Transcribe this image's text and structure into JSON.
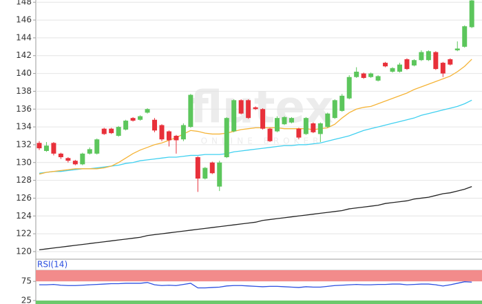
{
  "watermark": "flutex",
  "watermark_sub": "ONLINE BROKER",
  "chart_data": [
    {
      "type": "candlestick",
      "open": [
        132.2,
        131.3,
        132.2,
        131.0,
        130.5,
        130.2,
        129.8,
        131.0,
        131.0,
        133.8,
        133.8,
        133.0,
        133.7,
        135.0,
        134.8,
        135.6,
        134.8,
        134.2,
        133.5,
        133.0,
        132.6,
        134.0,
        130.6,
        128.2,
        130.0,
        127.3,
        130.6,
        133.5,
        137.0,
        137.0,
        136.2,
        136.0,
        133.8,
        133.5,
        134.3,
        134.5,
        133.8,
        133.2,
        134.4,
        133.2,
        134.0,
        135.0,
        135.8,
        137.2,
        139.6,
        140.0,
        139.6,
        139.2,
        141.2,
        140.2,
        140.2,
        141.6,
        140.9,
        141.5,
        141.5,
        142.4,
        141.2,
        141.6,
        142.6,
        143.0,
        145.2
      ],
      "high": [
        132.4,
        132.3,
        132.3,
        131.1,
        130.6,
        130.3,
        131.1,
        131.7,
        132.7,
        133.9,
        133.9,
        134.1,
        134.8,
        135.1,
        135.3,
        136.1,
        135.0,
        134.3,
        133.6,
        133.1,
        134.4,
        137.7,
        130.7,
        129.5,
        130.1,
        130.2,
        135.1,
        137.1,
        137.1,
        137.1,
        136.3,
        136.1,
        133.9,
        135.2,
        135.2,
        135.1,
        133.9,
        135.1,
        134.5,
        134.5,
        135.6,
        137.1,
        137.7,
        139.8,
        140.7,
        140.1,
        140.1,
        139.8,
        141.3,
        140.7,
        141.2,
        141.7,
        141.6,
        142.6,
        142.6,
        142.5,
        141.3,
        141.7,
        143.6,
        145.4,
        148.3
      ],
      "low": [
        131.4,
        131.2,
        130.8,
        130.4,
        130.0,
        129.7,
        129.7,
        130.9,
        130.9,
        133.1,
        133.2,
        132.9,
        133.6,
        134.6,
        134.7,
        135.5,
        133.4,
        132.4,
        131.8,
        131.0,
        132.4,
        133.9,
        126.7,
        128.1,
        128.7,
        126.8,
        130.5,
        133.4,
        135.4,
        134.9,
        135.9,
        133.7,
        132.3,
        133.4,
        134.2,
        134.4,
        132.6,
        133.1,
        133.3,
        132.3,
        133.9,
        134.9,
        135.7,
        137.1,
        139.5,
        139.4,
        139.5,
        139.1,
        140.7,
        140.1,
        140.1,
        140.4,
        140.8,
        141.4,
        141.4,
        140.4,
        139.6,
        140.9,
        142.5,
        142.9,
        145.1
      ],
      "close": [
        131.6,
        131.9,
        131.0,
        130.6,
        130.2,
        129.8,
        131.0,
        131.5,
        132.6,
        133.2,
        133.3,
        134.0,
        134.7,
        134.7,
        135.2,
        136.0,
        133.6,
        132.6,
        132.5,
        132.5,
        134.2,
        137.6,
        128.2,
        129.4,
        128.8,
        130.0,
        135.0,
        137.0,
        135.5,
        135.0,
        136.0,
        133.8,
        132.4,
        135.0,
        135.1,
        135.0,
        132.8,
        135.0,
        133.4,
        134.4,
        135.5,
        137.0,
        137.5,
        139.6,
        140.2,
        139.5,
        140.0,
        139.7,
        140.8,
        140.6,
        141.0,
        140.5,
        141.5,
        142.4,
        142.5,
        140.5,
        140.0,
        141.0,
        142.8,
        145.3,
        148.2
      ],
      "up_color": "#5cc65c",
      "down_color": "#e8303a",
      "series": [
        {
          "color": "#222222",
          "values": [
            120.2,
            120.3,
            120.4,
            120.5,
            120.6,
            120.7,
            120.8,
            120.9,
            121.0,
            121.1,
            121.2,
            121.3,
            121.4,
            121.5,
            121.6,
            121.8,
            121.9,
            122.0,
            122.1,
            122.2,
            122.3,
            122.4,
            122.5,
            122.6,
            122.7,
            122.8,
            122.9,
            123.0,
            123.1,
            123.2,
            123.3,
            123.5,
            123.6,
            123.7,
            123.8,
            123.9,
            124.0,
            124.1,
            124.2,
            124.3,
            124.4,
            124.5,
            124.6,
            124.8,
            124.9,
            125.0,
            125.1,
            125.2,
            125.4,
            125.5,
            125.6,
            125.7,
            125.9,
            126.0,
            126.1,
            126.3,
            126.5,
            126.6,
            126.8,
            127.0,
            127.3
          ]
        },
        {
          "color": "#3fd0f0",
          "values": [
            128.8,
            128.9,
            129.0,
            129.0,
            129.1,
            129.2,
            129.3,
            129.3,
            129.4,
            129.5,
            129.6,
            129.7,
            129.9,
            130.0,
            130.2,
            130.3,
            130.4,
            130.5,
            130.6,
            130.6,
            130.7,
            130.8,
            130.8,
            130.9,
            130.9,
            130.9,
            131.0,
            131.2,
            131.3,
            131.4,
            131.5,
            131.6,
            131.7,
            131.8,
            131.9,
            131.9,
            132.0,
            132.0,
            132.1,
            132.2,
            132.4,
            132.6,
            132.8,
            133.0,
            133.3,
            133.6,
            133.8,
            134.0,
            134.2,
            134.4,
            134.6,
            134.8,
            135.0,
            135.3,
            135.5,
            135.7,
            135.9,
            136.1,
            136.3,
            136.6,
            137.0
          ]
        },
        {
          "color": "#f5b335",
          "values": [
            128.7,
            128.9,
            129.0,
            129.1,
            129.2,
            129.3,
            129.3,
            129.3,
            129.3,
            129.4,
            129.6,
            130.0,
            130.5,
            131.0,
            131.4,
            131.7,
            132.0,
            132.2,
            132.5,
            132.8,
            133.2,
            133.6,
            133.5,
            133.3,
            133.2,
            133.2,
            133.3,
            133.5,
            133.7,
            133.8,
            133.9,
            133.9,
            133.9,
            133.9,
            133.8,
            133.8,
            133.8,
            133.8,
            133.7,
            133.8,
            133.9,
            134.3,
            135.0,
            135.6,
            136.0,
            136.2,
            136.3,
            136.6,
            136.9,
            137.2,
            137.5,
            137.8,
            138.2,
            138.5,
            138.8,
            139.1,
            139.4,
            139.7,
            140.2,
            140.8,
            141.6
          ]
        }
      ],
      "ylim": [
        119.3,
        148.25
      ],
      "yticks": [
        120,
        122,
        124,
        126,
        128,
        130,
        132,
        134,
        136,
        138,
        140,
        142,
        144,
        146,
        148
      ],
      "grid": true
    },
    {
      "type": "line",
      "title": "RSI(14)",
      "series": [
        {
          "color": "#2a4ee0",
          "values": [
            66,
            66,
            67,
            65,
            64,
            64,
            65,
            66,
            67,
            68,
            69,
            69,
            70,
            70,
            70,
            72,
            66,
            64,
            65,
            64,
            67,
            70,
            58,
            58,
            59,
            60,
            63,
            64,
            64,
            63,
            62,
            61,
            62,
            62,
            61,
            60,
            59,
            61,
            60,
            60,
            62,
            64,
            65,
            66,
            67,
            66,
            66,
            67,
            67,
            68,
            68,
            66,
            67,
            68,
            68,
            66,
            63,
            66,
            70,
            74,
            73
          ]
        }
      ],
      "overbought": 75,
      "oversold": 25,
      "overbought_color": "#f28b8b",
      "oversold_color": "#6cc96c",
      "ylim": [
        16,
        104
      ],
      "yticks": [
        25,
        75
      ]
    }
  ]
}
